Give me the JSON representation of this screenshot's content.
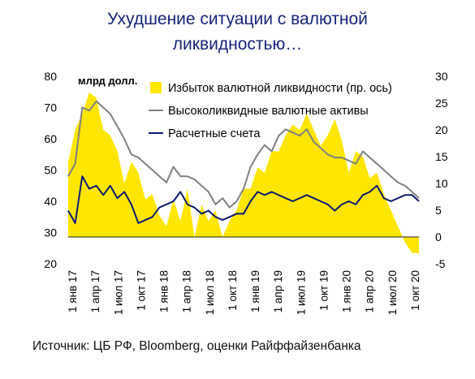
{
  "title_line1": "Ухудшение ситуации с валютной",
  "title_line2": "ликвидностью…",
  "source": "Источник: ЦБ РФ, Bloomberg, оценки Райффайзенбанка",
  "chart_data": {
    "type": "line",
    "unit_label": "млрд долл.",
    "y_left": {
      "lim": [
        20,
        80
      ],
      "ticks": [
        20,
        30,
        40,
        50,
        60,
        70,
        80
      ]
    },
    "y_right": {
      "lim": [
        -5,
        30
      ],
      "ticks": [
        -5,
        0,
        5,
        10,
        15,
        20,
        25,
        30
      ]
    },
    "x_tick_labels": [
      "1 янв 17",
      "1 апр 17",
      "1 июл 17",
      "1 окт 17",
      "1 янв 18",
      "1 апр 18",
      "1 июл 18",
      "1 окт 18",
      "1 янв 19",
      "1 апр 19",
      "1 июл 19",
      "1 окт 19",
      "1 янв 20",
      "1 апр 20",
      "1 июл 20",
      "1 окт 20"
    ],
    "legend_position": "top",
    "colors": {
      "excess": "#ffe600",
      "hqla": "#808080",
      "settlement": "#0d1a6e"
    },
    "series": [
      {
        "name": "Избыток валютной ликвидности (пр. ось)",
        "axis": "right",
        "kind": "area",
        "values": [
          14,
          20,
          23,
          27,
          26,
          20,
          19,
          16,
          10,
          14,
          12,
          7,
          8,
          4,
          2,
          7,
          3,
          9,
          0,
          6,
          3,
          5,
          0,
          3,
          5,
          9,
          9,
          13,
          12,
          16,
          16,
          19,
          21,
          20,
          23,
          20,
          17,
          19,
          22,
          18,
          12,
          16,
          15,
          11,
          12,
          8,
          5,
          2,
          -1,
          -3,
          -3
        ]
      },
      {
        "name": "Высоколиквидные валютные активы",
        "axis": "left",
        "kind": "line",
        "values": [
          48,
          52,
          70,
          69,
          72,
          70,
          68,
          64,
          60,
          55,
          54,
          52,
          50,
          48,
          46,
          51,
          48,
          48,
          47,
          45,
          43,
          39,
          41,
          38,
          40,
          44,
          51,
          55,
          58,
          56,
          61,
          63,
          62,
          61,
          63,
          59,
          57,
          55,
          54,
          54,
          53,
          52,
          56,
          54,
          52,
          50,
          48,
          46,
          45,
          43,
          41
        ]
      },
      {
        "name": "Расчетные счета",
        "axis": "left",
        "kind": "line",
        "values": [
          37,
          33,
          48,
          44,
          45,
          42,
          45,
          41,
          43,
          39,
          33,
          34,
          35,
          38,
          39,
          40,
          43,
          39,
          38,
          36,
          37,
          35,
          34,
          35,
          36,
          36,
          40,
          43,
          42,
          43,
          42,
          41,
          40,
          41,
          42,
          41,
          40,
          39,
          37,
          39,
          40,
          39,
          42,
          43,
          45,
          41,
          40,
          41,
          42,
          42,
          40
        ]
      }
    ]
  }
}
